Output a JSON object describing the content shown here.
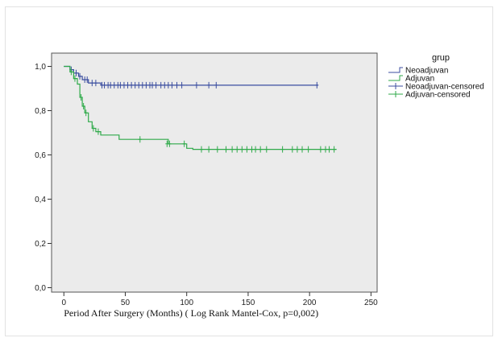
{
  "chart_data": {
    "type": "line",
    "title": "",
    "xlabel": "Period After Surgery (Months) ( Log Rank Mantel-Cox, p=0,002)",
    "ylabel": "",
    "xlim": [
      -10,
      255
    ],
    "ylim": [
      -0.02,
      1.06
    ],
    "xticks": [
      0,
      50,
      100,
      150,
      200,
      250
    ],
    "xtick_labels": [
      "0",
      "50",
      "100",
      "150",
      "200",
      "250"
    ],
    "yticks": [
      0.0,
      0.2,
      0.4,
      0.6,
      0.8,
      1.0
    ],
    "ytick_labels": [
      "0,0",
      "0,2",
      "0,4",
      "0,6",
      "0,8",
      "1,0"
    ],
    "grid": false,
    "background": "#ebebeb",
    "legend": {
      "title": "grup",
      "placement": "right",
      "entries": [
        {
          "label": "Neoadjuvan",
          "kind": "step",
          "color": "#3b4ea0"
        },
        {
          "label": "Adjuvan",
          "kind": "step",
          "color": "#2faa4a"
        },
        {
          "label": "Neoadjuvan-censored",
          "kind": "censor",
          "color": "#3b4ea0"
        },
        {
          "label": "Adjuvan-censored",
          "kind": "censor",
          "color": "#2faa4a"
        }
      ]
    },
    "series": [
      {
        "name": "Neoadjuvan",
        "color": "#3b4ea0",
        "steps": [
          [
            0,
            1.0
          ],
          [
            5,
            1.0
          ],
          [
            5,
            0.985
          ],
          [
            8,
            0.985
          ],
          [
            8,
            0.97
          ],
          [
            12,
            0.97
          ],
          [
            12,
            0.955
          ],
          [
            15,
            0.955
          ],
          [
            15,
            0.94
          ],
          [
            20,
            0.94
          ],
          [
            20,
            0.925
          ],
          [
            30,
            0.925
          ],
          [
            30,
            0.915
          ],
          [
            207,
            0.915
          ]
        ],
        "censored": [
          [
            6,
            0.985
          ],
          [
            10,
            0.97
          ],
          [
            13,
            0.955
          ],
          [
            17,
            0.94
          ],
          [
            19,
            0.94
          ],
          [
            23,
            0.925
          ],
          [
            26,
            0.925
          ],
          [
            31,
            0.915
          ],
          [
            33,
            0.915
          ],
          [
            36,
            0.915
          ],
          [
            38,
            0.915
          ],
          [
            41,
            0.915
          ],
          [
            44,
            0.915
          ],
          [
            46,
            0.915
          ],
          [
            49,
            0.915
          ],
          [
            52,
            0.915
          ],
          [
            55,
            0.915
          ],
          [
            58,
            0.915
          ],
          [
            61,
            0.915
          ],
          [
            64,
            0.915
          ],
          [
            67,
            0.915
          ],
          [
            70,
            0.915
          ],
          [
            72,
            0.915
          ],
          [
            75,
            0.915
          ],
          [
            79,
            0.915
          ],
          [
            82,
            0.915
          ],
          [
            85,
            0.915
          ],
          [
            88,
            0.915
          ],
          [
            92,
            0.915
          ],
          [
            96,
            0.915
          ],
          [
            108,
            0.915
          ],
          [
            118,
            0.915
          ],
          [
            124,
            0.915
          ],
          [
            206,
            0.915
          ]
        ]
      },
      {
        "name": "Adjuvan",
        "color": "#2faa4a",
        "steps": [
          [
            0,
            1.0
          ],
          [
            5,
            1.0
          ],
          [
            5,
            0.975
          ],
          [
            8,
            0.975
          ],
          [
            8,
            0.945
          ],
          [
            11,
            0.945
          ],
          [
            11,
            0.92
          ],
          [
            13,
            0.92
          ],
          [
            13,
            0.86
          ],
          [
            15,
            0.86
          ],
          [
            15,
            0.82
          ],
          [
            17,
            0.82
          ],
          [
            17,
            0.79
          ],
          [
            20,
            0.79
          ],
          [
            20,
            0.75
          ],
          [
            23,
            0.75
          ],
          [
            23,
            0.72
          ],
          [
            26,
            0.72
          ],
          [
            26,
            0.705
          ],
          [
            30,
            0.705
          ],
          [
            30,
            0.69
          ],
          [
            45,
            0.69
          ],
          [
            45,
            0.67
          ],
          [
            85,
            0.67
          ],
          [
            85,
            0.65
          ],
          [
            100,
            0.65
          ],
          [
            100,
            0.63
          ],
          [
            105,
            0.63
          ],
          [
            105,
            0.625
          ],
          [
            222,
            0.625
          ]
        ],
        "censored": [
          [
            6,
            0.975
          ],
          [
            9,
            0.945
          ],
          [
            14,
            0.86
          ],
          [
            16,
            0.82
          ],
          [
            18,
            0.79
          ],
          [
            24,
            0.72
          ],
          [
            28,
            0.705
          ],
          [
            62,
            0.67
          ],
          [
            84,
            0.65
          ],
          [
            86,
            0.65
          ],
          [
            98,
            0.65
          ],
          [
            112,
            0.625
          ],
          [
            118,
            0.625
          ],
          [
            125,
            0.625
          ],
          [
            132,
            0.625
          ],
          [
            137,
            0.625
          ],
          [
            141,
            0.625
          ],
          [
            145,
            0.625
          ],
          [
            149,
            0.625
          ],
          [
            153,
            0.625
          ],
          [
            156,
            0.625
          ],
          [
            160,
            0.625
          ],
          [
            165,
            0.625
          ],
          [
            178,
            0.625
          ],
          [
            186,
            0.625
          ],
          [
            190,
            0.625
          ],
          [
            194,
            0.625
          ],
          [
            199,
            0.625
          ],
          [
            209,
            0.625
          ],
          [
            213,
            0.625
          ],
          [
            216,
            0.625
          ],
          [
            220,
            0.625
          ]
        ]
      }
    ]
  }
}
